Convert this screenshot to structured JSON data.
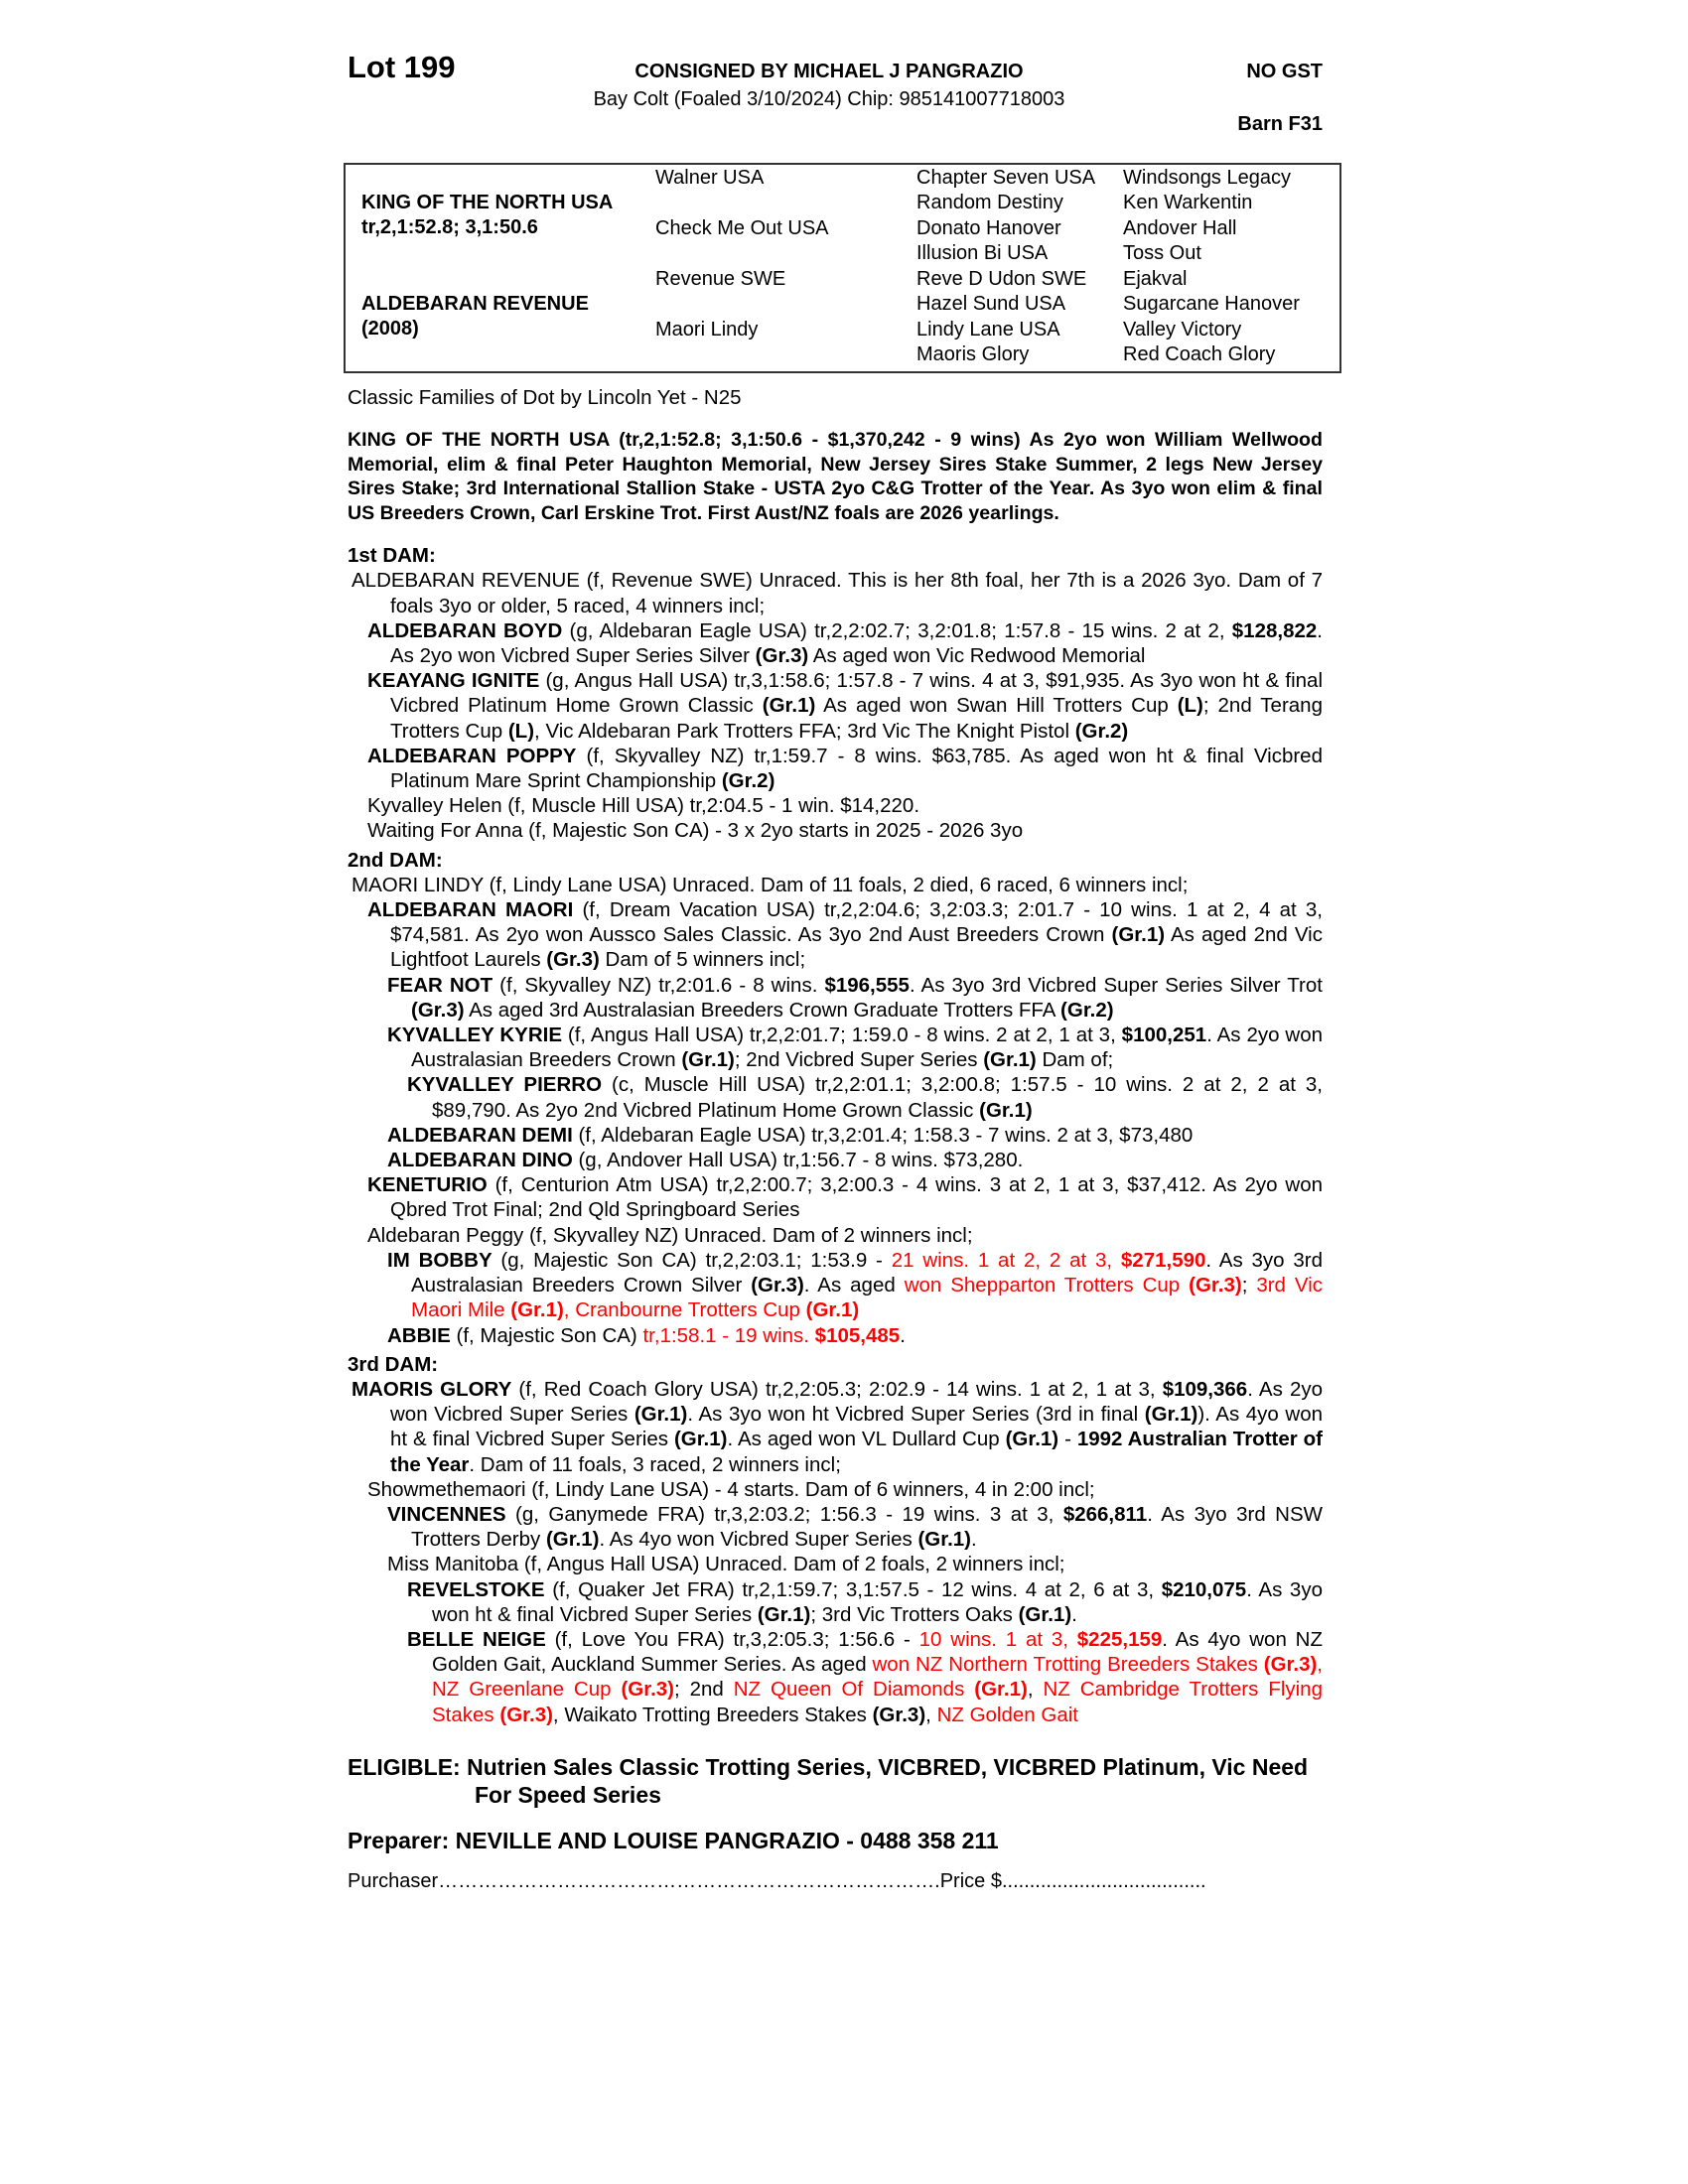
{
  "header": {
    "lot": "Lot 199",
    "consigned": "CONSIGNED BY MICHAEL J  PANGRAZIO",
    "description": "Bay Colt (Foaled 3/10/2024) Chip: 985141007718003",
    "gst": "NO GST",
    "barn": "Barn F31"
  },
  "pedigree": {
    "sire": "KING OF THE NORTH USA",
    "sire_record": "tr,2,1:52.8; 3,1:50.6",
    "dam": "ALDEBARAN REVENUE",
    "dam_year": "(2008)",
    "gen2": [
      "Walner USA",
      "Check Me Out USA",
      "Revenue SWE",
      "Maori Lindy"
    ],
    "gen3": [
      "Chapter Seven USA",
      "Random Destiny",
      "Donato Hanover",
      "Illusion Bi USA",
      "Reve D Udon SWE",
      "Hazel Sund USA",
      "Lindy Lane USA",
      "Maoris Glory"
    ],
    "gen4": [
      "Windsongs Legacy",
      "Ken Warkentin",
      "Andover Hall",
      "Toss Out",
      "Ejakval",
      "Sugarcane Hanover",
      "Valley Victory",
      "Red Coach Glory"
    ]
  },
  "family": "Classic Families of Dot by Lincoln Yet - N25",
  "sire_para": "KING OF THE NORTH USA (tr,2,1:52.8; 3,1:50.6 - $1,370,242 - 9 wins) As 2yo won William Wellwood Memorial, elim & final Peter Haughton Memorial, New Jersey Sires Stake Summer, 2 legs New Jersey Sires Stake; 3rd International Stallion Stake - USTA 2yo C&G Trotter of the Year. As 3yo won elim & final US Breeders Crown, Carl Erskine Trot. First Aust/NZ foals are 2026 yearlings.",
  "colors": {
    "highlight": "#ff0000"
  },
  "dams": [
    {
      "heading": "1st DAM:",
      "entries": [
        {
          "level": 0,
          "segs": [
            [
              "ALDEBARAN REVENUE (f, Revenue SWE) Unraced. This is her 8th foal, her 7th is a 2026 3yo. Dam of 7 foals 3yo or older, 5 raced, 4 winners incl;",
              ""
            ]
          ]
        },
        {
          "level": 1,
          "segs": [
            [
              "ALDEBARAN BOYD",
              "b"
            ],
            [
              " (g, Aldebaran Eagle USA) tr,2,2:02.7; 3,2:01.8; 1:57.8 - 15 wins. 2 at 2, ",
              ""
            ],
            [
              "$128,822",
              "b"
            ],
            [
              ". As 2yo won Vicbred Super Series Silver ",
              ""
            ],
            [
              "(Gr.3)",
              "b"
            ],
            [
              " As aged won Vic Redwood Memorial",
              ""
            ]
          ]
        },
        {
          "level": 1,
          "segs": [
            [
              "KEAYANG IGNITE",
              "b"
            ],
            [
              " (g, Angus Hall USA) tr,3,1:58.6; 1:57.8 - 7 wins. 4 at 3, $91,935. As 3yo won ht & final Vicbred Platinum Home Grown Classic ",
              ""
            ],
            [
              "(Gr.1)",
              "b"
            ],
            [
              " As aged won Swan Hill Trotters Cup ",
              ""
            ],
            [
              "(L)",
              "b"
            ],
            [
              "; 2nd Terang Trotters Cup ",
              ""
            ],
            [
              "(L)",
              "b"
            ],
            [
              ", Vic Aldebaran Park Trotters FFA; 3rd Vic The Knight Pistol ",
              ""
            ],
            [
              "(Gr.2)",
              "b"
            ]
          ]
        },
        {
          "level": 1,
          "segs": [
            [
              "ALDEBARAN POPPY",
              "b"
            ],
            [
              " (f, Skyvalley NZ) tr,1:59.7 - 8 wins. $63,785. As aged won ht & final Vicbred Platinum Mare Sprint Championship ",
              ""
            ],
            [
              "(Gr.2)",
              "b"
            ]
          ]
        },
        {
          "level": 1,
          "segs": [
            [
              "Kyvalley Helen (f, Muscle Hill USA) tr,2:04.5 - 1 win. $14,220.",
              ""
            ]
          ]
        },
        {
          "level": 1,
          "segs": [
            [
              "Waiting For Anna (f, Majestic Son CA) - 3 x 2yo starts in 2025 - 2026 3yo",
              ""
            ]
          ]
        }
      ]
    },
    {
      "heading": "2nd DAM:",
      "entries": [
        {
          "level": 0,
          "segs": [
            [
              "MAORI LINDY (f, Lindy Lane USA) Unraced. Dam of 11 foals, 2 died, 6 raced, 6 winners incl;",
              ""
            ]
          ]
        },
        {
          "level": 1,
          "segs": [
            [
              "ALDEBARAN MAORI",
              "b"
            ],
            [
              " (f, Dream Vacation USA) tr,2,2:04.6; 3,2:03.3; 2:01.7 - 10 wins. 1 at 2, 4 at 3, $74,581. As 2yo won Aussco Sales Classic. As 3yo 2nd Aust Breeders Crown ",
              ""
            ],
            [
              "(Gr.1)",
              "b"
            ],
            [
              " As aged 2nd Vic Lightfoot Laurels ",
              ""
            ],
            [
              "(Gr.3)",
              "b"
            ],
            [
              " Dam of 5 winners incl;",
              ""
            ]
          ]
        },
        {
          "level": 2,
          "segs": [
            [
              "FEAR NOT",
              "b"
            ],
            [
              " (f, Skyvalley NZ) tr,2:01.6 - 8 wins. ",
              ""
            ],
            [
              "$196,555",
              "b"
            ],
            [
              ". As 3yo 3rd Vicbred Super Series Silver Trot ",
              ""
            ],
            [
              "(Gr.3)",
              "b"
            ],
            [
              " As aged 3rd Australasian Breeders Crown Graduate Trotters FFA ",
              ""
            ],
            [
              "(Gr.2)",
              "b"
            ]
          ]
        },
        {
          "level": 2,
          "segs": [
            [
              "KYVALLEY KYRIE",
              "b"
            ],
            [
              " (f, Angus Hall USA) tr,2,2:01.7; 1:59.0 - 8 wins. 2 at 2, 1 at 3, ",
              ""
            ],
            [
              "$100,251",
              "b"
            ],
            [
              ". As 2yo won Australasian Breeders Crown ",
              ""
            ],
            [
              "(Gr.1)",
              "b"
            ],
            [
              "; 2nd Vicbred Super Series ",
              ""
            ],
            [
              "(Gr.1)",
              "b"
            ],
            [
              " Dam of;",
              ""
            ]
          ]
        },
        {
          "level": 3,
          "segs": [
            [
              "KYVALLEY PIERRO",
              "b"
            ],
            [
              " (c, Muscle Hill USA) tr,2,2:01.1; 3,2:00.8; 1:57.5 - 10 wins. 2 at 2, 2 at 3, $89,790. As 2yo 2nd Vicbred Platinum Home Grown Classic ",
              ""
            ],
            [
              "(Gr.1)",
              "b"
            ]
          ]
        },
        {
          "level": 2,
          "segs": [
            [
              "ALDEBARAN DEMI",
              "b"
            ],
            [
              " (f, Aldebaran Eagle USA) tr,3,2:01.4; 1:58.3 - 7 wins. 2 at 3, $73,480",
              ""
            ]
          ]
        },
        {
          "level": 2,
          "segs": [
            [
              "ALDEBARAN DINO",
              "b"
            ],
            [
              " (g, Andover Hall USA) tr,1:56.7 - 8 wins. $73,280.",
              ""
            ]
          ]
        },
        {
          "level": 1,
          "segs": [
            [
              "KENETURIO",
              "b"
            ],
            [
              " (f, Centurion Atm USA) tr,2,2:00.7; 3,2:00.3 - 4 wins. 3 at 2, 1 at 3, $37,412. As 2yo won Qbred Trot Final; 2nd Qld Springboard Series",
              ""
            ]
          ]
        },
        {
          "level": 1,
          "segs": [
            [
              "Aldebaran Peggy (f, Skyvalley NZ) Unraced. Dam of 2 winners incl;",
              ""
            ]
          ]
        },
        {
          "level": 2,
          "segs": [
            [
              "IM BOBBY",
              "b"
            ],
            [
              " (g, Majestic Son CA) tr,2,2:03.1; 1:53.9 - ",
              ""
            ],
            [
              "21 wins. 1 at 2, 2 at 3, ",
              "r"
            ],
            [
              "$271,590",
              "rb"
            ],
            [
              ". As 3yo 3rd Australasian Breeders Crown Silver ",
              ""
            ],
            [
              "(Gr.3)",
              "b"
            ],
            [
              ". As aged ",
              ""
            ],
            [
              "won Shepparton Trotters Cup ",
              "r"
            ],
            [
              "(Gr.3)",
              "rb"
            ],
            [
              "; ",
              ""
            ],
            [
              "3rd Vic Maori Mile ",
              "r"
            ],
            [
              "(Gr.1)",
              "rb"
            ],
            [
              ", Cranbourne Trotters Cup ",
              "r"
            ],
            [
              "(Gr.1)",
              "rb"
            ]
          ]
        },
        {
          "level": 2,
          "segs": [
            [
              "ABBIE",
              "b"
            ],
            [
              " (f, Majestic Son CA) ",
              ""
            ],
            [
              "tr,1:58.1 - 19 wins. ",
              "r"
            ],
            [
              "$105,485",
              "rb"
            ],
            [
              ".",
              ""
            ]
          ]
        }
      ]
    },
    {
      "heading": "3rd DAM:",
      "entries": [
        {
          "level": 0,
          "segs": [
            [
              "MAORIS GLORY",
              "b"
            ],
            [
              " (f, Red Coach Glory USA) tr,2,2:05.3; 2:02.9 - 14 wins. 1 at 2, 1 at 3, ",
              ""
            ],
            [
              "$109,366",
              "b"
            ],
            [
              ". As 2yo won Vicbred Super Series ",
              ""
            ],
            [
              "(Gr.1)",
              "b"
            ],
            [
              ". As 3yo won ht Vicbred Super Series (3rd in final ",
              ""
            ],
            [
              "(Gr.1)",
              "b"
            ],
            [
              "). As 4yo won ht & final Vicbred Super Series ",
              ""
            ],
            [
              "(Gr.1)",
              "b"
            ],
            [
              ". As aged won VL Dullard Cup ",
              ""
            ],
            [
              "(Gr.1)",
              "b"
            ],
            [
              " - ",
              ""
            ],
            [
              "1992 Australian Trotter of the Year",
              "b"
            ],
            [
              ". Dam of 11 foals, 3 raced, 2 winners incl;",
              ""
            ]
          ]
        },
        {
          "level": 1,
          "segs": [
            [
              "Showmethemaori (f, Lindy Lane USA) - 4 starts. Dam of 6 winners, 4 in 2:00 incl;",
              ""
            ]
          ]
        },
        {
          "level": 2,
          "segs": [
            [
              "VINCENNES",
              "b"
            ],
            [
              " (g, Ganymede FRA) tr,3,2:03.2; 1:56.3 - 19 wins. 3 at 3, ",
              ""
            ],
            [
              "$266,811",
              "b"
            ],
            [
              ". As 3yo 3rd NSW Trotters Derby ",
              ""
            ],
            [
              "(Gr.1)",
              "b"
            ],
            [
              ". As 4yo won Vicbred Super Series ",
              ""
            ],
            [
              "(Gr.1)",
              "b"
            ],
            [
              ".",
              ""
            ]
          ]
        },
        {
          "level": 2,
          "segs": [
            [
              "Miss Manitoba (f, Angus Hall USA) Unraced. Dam of 2 foals, 2 winners incl;",
              ""
            ]
          ]
        },
        {
          "level": 3,
          "segs": [
            [
              "REVELSTOKE",
              "b"
            ],
            [
              " (f, Quaker Jet FRA) tr,2,1:59.7; 3,1:57.5 - 12 wins. 4 at 2, 6 at 3, ",
              ""
            ],
            [
              "$210,075",
              "b"
            ],
            [
              ". As 3yo won ht & final Vicbred Super Series ",
              ""
            ],
            [
              "(Gr.1)",
              "b"
            ],
            [
              "; 3rd Vic Trotters Oaks ",
              ""
            ],
            [
              "(Gr.1)",
              "b"
            ],
            [
              ".",
              ""
            ]
          ]
        },
        {
          "level": 3,
          "segs": [
            [
              "BELLE NEIGE",
              "b"
            ],
            [
              " (f, Love You FRA) tr,3,2:05.3; 1:56.6 - ",
              ""
            ],
            [
              "10 wins. 1 at 3, ",
              "r"
            ],
            [
              "$225,159",
              "rb"
            ],
            [
              ". As 4yo won NZ Golden Gait, Auckland Summer Series. As aged ",
              ""
            ],
            [
              "won NZ Northern Trotting Breeders Stakes ",
              "r"
            ],
            [
              "(Gr.3)",
              "rb"
            ],
            [
              ", NZ Greenlane Cup ",
              "r"
            ],
            [
              "(Gr.3)",
              "rb"
            ],
            [
              "; 2nd ",
              ""
            ],
            [
              "NZ Queen Of Diamonds ",
              "r"
            ],
            [
              "(Gr.1)",
              "rb"
            ],
            [
              ", ",
              ""
            ],
            [
              "NZ Cambridge Trotters Flying Stakes ",
              "r"
            ],
            [
              "(Gr.3)",
              "rb"
            ],
            [
              ", Waikato Trotting Breeders Stakes ",
              ""
            ],
            [
              "(Gr.3)",
              "b"
            ],
            [
              ", ",
              ""
            ],
            [
              "NZ Golden Gait",
              "r"
            ]
          ]
        }
      ]
    }
  ],
  "eligible": "ELIGIBLE: Nutrien Sales Classic Trotting Series, VICBRED, VICBRED Platinum, Vic Need For Speed Series",
  "preparer": "Preparer: NEVILLE AND LOUISE PANGRAZIO - 0488 358 211",
  "purchaser_label": "Purchaser",
  "purchaser_dots": "………………………………………………………………….",
  "price_label": "Price $",
  "price_dots": "....................................."
}
